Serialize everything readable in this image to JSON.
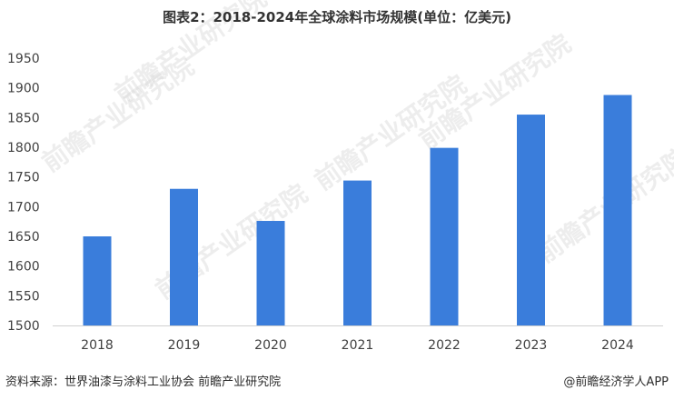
{
  "chart_data": {
    "type": "bar",
    "title": "图表2：2018-2024年全球涂料市场规模(单位：亿美元)",
    "categories": [
      "2018",
      "2019",
      "2020",
      "2021",
      "2022",
      "2023",
      "2024"
    ],
    "values": [
      1650,
      1730,
      1676,
      1744,
      1799,
      1855,
      1888
    ],
    "ylim": [
      1500,
      1950
    ],
    "yticks": [
      1500,
      1550,
      1600,
      1650,
      1700,
      1750,
      1800,
      1850,
      1900,
      1950
    ],
    "xlabel": "",
    "ylabel": "",
    "grid": false,
    "colors": {
      "bar": "#3a7ddb",
      "axis": "#d0d0d0"
    }
  },
  "footer": {
    "source": "资料来源：世界油漆与涂料工业协会 前瞻产业研究院",
    "credit": "@前瞻经济学人APP"
  },
  "watermark": {
    "text": "前瞻产业研究院"
  }
}
